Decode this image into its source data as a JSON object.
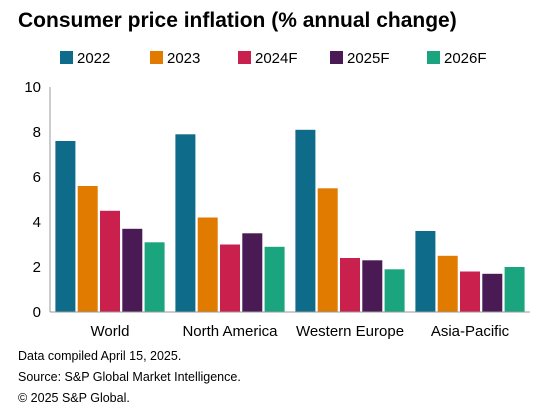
{
  "chart_data": {
    "type": "bar",
    "title": "Consumer price inflation (% annual change)",
    "categories": [
      "World",
      "North America",
      "Western Europe",
      "Asia-Pacific"
    ],
    "series": [
      {
        "name": "2022",
        "color": "#0e6b8a",
        "values": [
          7.6,
          7.9,
          8.1,
          3.6
        ]
      },
      {
        "name": "2023",
        "color": "#e07b00",
        "values": [
          5.6,
          4.2,
          5.5,
          2.5
        ]
      },
      {
        "name": "2024F",
        "color": "#c9204e",
        "values": [
          4.5,
          3.0,
          2.4,
          1.8
        ]
      },
      {
        "name": "2025F",
        "color": "#4a1a54",
        "values": [
          3.7,
          3.5,
          2.3,
          1.7
        ]
      },
      {
        "name": "2026F",
        "color": "#1aa57f",
        "values": [
          3.1,
          2.9,
          1.9,
          2.0
        ]
      }
    ],
    "ylim": [
      0,
      10
    ],
    "yticks": [
      0,
      2,
      4,
      6,
      8,
      10
    ],
    "xlabel": "",
    "ylabel": "",
    "grid": false,
    "legend": "top"
  },
  "footnotes": {
    "compiled": "Data compiled April 15, 2025.",
    "source": "Source: S&P Global Market Intelligence.",
    "copyright": "© 2025 S&P Global."
  }
}
